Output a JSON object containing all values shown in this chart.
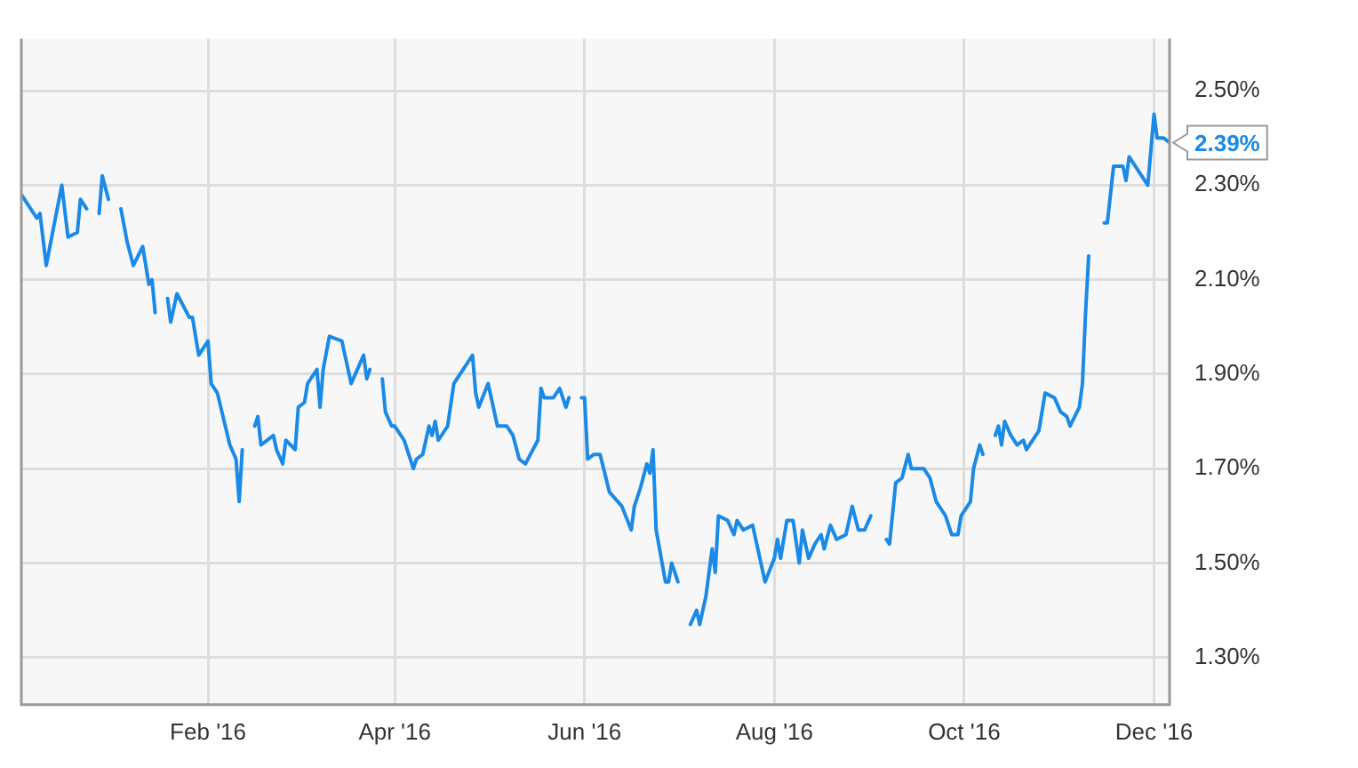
{
  "chart_data": {
    "type": "line",
    "x": [
      "2015-12-03",
      "2015-12-06",
      "2015-12-08",
      "2015-12-09",
      "2015-12-11",
      "2015-12-16",
      "2015-12-18",
      "2015-12-21",
      "2015-12-22",
      "2015-12-24",
      "2015-12-27",
      "2015-12-28",
      "2015-12-29",
      "2015-12-31",
      "2016-01-02",
      "2016-01-04",
      "2016-01-06",
      "2016-01-08",
      "2016-01-11",
      "2016-01-13",
      "2016-01-14",
      "2016-01-15",
      "2016-01-17",
      "2016-01-19",
      "2016-01-20",
      "2016-01-22",
      "2016-01-26",
      "2016-01-27",
      "2016-01-29",
      "2016-02-01",
      "2016-02-02",
      "2016-02-04",
      "2016-02-08",
      "2016-02-10",
      "2016-02-11",
      "2016-02-12",
      "2016-02-14",
      "2016-02-16",
      "2016-02-17",
      "2016-02-18",
      "2016-02-22",
      "2016-02-23",
      "2016-02-25",
      "2016-02-26",
      "2016-02-29",
      "2016-03-01",
      "2016-03-03",
      "2016-03-04",
      "2016-03-07",
      "2016-03-08",
      "2016-03-09",
      "2016-03-11",
      "2016-03-15",
      "2016-03-18",
      "2016-03-22",
      "2016-03-23",
      "2016-03-24",
      "2016-03-26",
      "2016-03-28",
      "2016-03-29",
      "2016-03-31",
      "2016-04-01",
      "2016-04-04",
      "2016-04-05",
      "2016-04-07",
      "2016-04-08",
      "2016-04-10",
      "2016-04-12",
      "2016-04-13",
      "2016-04-14",
      "2016-04-15",
      "2016-04-18",
      "2016-04-20",
      "2016-04-21",
      "2016-04-24",
      "2016-04-26",
      "2016-04-27",
      "2016-04-28",
      "2016-05-01",
      "2016-05-04",
      "2016-05-07",
      "2016-05-09",
      "2016-05-11",
      "2016-05-13",
      "2016-05-17",
      "2016-05-18",
      "2016-05-19",
      "2016-05-22",
      "2016-05-24",
      "2016-05-26",
      "2016-05-27",
      "2016-05-29",
      "2016-05-31",
      "2016-06-01",
      "2016-06-02",
      "2016-06-04",
      "2016-06-06",
      "2016-06-09",
      "2016-06-13",
      "2016-06-16",
      "2016-06-17",
      "2016-06-19",
      "2016-06-21",
      "2016-06-22",
      "2016-06-23",
      "2016-06-24",
      "2016-06-27",
      "2016-06-28",
      "2016-06-29",
      "2016-07-01",
      "2016-07-04",
      "2016-07-05",
      "2016-07-07",
      "2016-07-08",
      "2016-07-10",
      "2016-07-12",
      "2016-07-13",
      "2016-07-14",
      "2016-07-17",
      "2016-07-19",
      "2016-07-20",
      "2016-07-22",
      "2016-07-25",
      "2016-07-27",
      "2016-07-29",
      "2016-08-01",
      "2016-08-02",
      "2016-08-03",
      "2016-08-05",
      "2016-08-07",
      "2016-08-09",
      "2016-08-10",
      "2016-08-12",
      "2016-08-14",
      "2016-08-16",
      "2016-08-17",
      "2016-08-19",
      "2016-08-21",
      "2016-08-24",
      "2016-08-26",
      "2016-08-28",
      "2016-08-30",
      "2016-09-01",
      "2016-09-03",
      "2016-09-06",
      "2016-09-07",
      "2016-09-09",
      "2016-09-11",
      "2016-09-13",
      "2016-09-14",
      "2016-09-18",
      "2016-09-20",
      "2016-09-22",
      "2016-09-25",
      "2016-09-27",
      "2016-09-29",
      "2016-09-30",
      "2016-10-03",
      "2016-10-04",
      "2016-10-06",
      "2016-10-07",
      "2016-10-09",
      "2016-10-11",
      "2016-10-12",
      "2016-10-13",
      "2016-10-14",
      "2016-10-16",
      "2016-10-18",
      "2016-10-20",
      "2016-10-21",
      "2016-10-24",
      "2016-10-25",
      "2016-10-27",
      "2016-10-30",
      "2016-11-01",
      "2016-11-03",
      "2016-11-04",
      "2016-11-07",
      "2016-11-08",
      "2016-11-09",
      "2016-11-10",
      "2016-11-12",
      "2016-11-15",
      "2016-11-16",
      "2016-11-18",
      "2016-11-21",
      "2016-11-22",
      "2016-11-23",
      "2016-11-26",
      "2016-11-29",
      "2016-12-01",
      "2016-12-02",
      "2016-12-04",
      "2016-12-06"
    ],
    "series": [
      {
        "color": "#1a8ae6",
        "values": [
          2.28,
          2.25,
          2.23,
          2.24,
          2.13,
          2.3,
          2.19,
          2.2,
          2.27,
          2.25,
          null,
          2.24,
          2.32,
          2.27,
          null,
          2.25,
          2.18,
          2.13,
          2.17,
          2.09,
          2.1,
          2.03,
          null,
          2.06,
          2.01,
          2.07,
          2.02,
          2.02,
          1.94,
          1.97,
          1.88,
          1.86,
          1.75,
          1.72,
          1.63,
          1.74,
          null,
          1.79,
          1.81,
          1.75,
          1.77,
          1.74,
          1.71,
          1.76,
          1.74,
          1.83,
          1.84,
          1.88,
          1.91,
          1.83,
          1.91,
          1.98,
          1.97,
          1.88,
          1.94,
          1.89,
          1.91,
          null,
          1.89,
          1.82,
          1.79,
          1.79,
          1.76,
          1.74,
          1.7,
          1.72,
          1.73,
          1.79,
          1.77,
          1.8,
          1.76,
          1.79,
          1.88,
          1.89,
          1.92,
          1.94,
          1.86,
          1.83,
          1.88,
          1.79,
          1.79,
          1.77,
          1.72,
          1.71,
          1.76,
          1.87,
          1.85,
          1.85,
          1.87,
          1.83,
          1.85,
          null,
          1.85,
          1.85,
          1.72,
          1.73,
          1.73,
          1.65,
          1.62,
          1.57,
          1.62,
          1.66,
          1.71,
          1.69,
          1.74,
          1.57,
          1.46,
          1.46,
          1.5,
          1.46,
          null,
          1.37,
          1.4,
          1.37,
          1.43,
          1.53,
          1.48,
          1.6,
          1.59,
          1.56,
          1.59,
          1.57,
          1.58,
          1.52,
          1.46,
          1.51,
          1.55,
          1.51,
          1.59,
          1.59,
          1.5,
          1.57,
          1.51,
          1.54,
          1.56,
          1.53,
          1.58,
          1.55,
          1.56,
          1.62,
          1.57,
          1.57,
          1.6,
          null,
          1.55,
          1.54,
          1.67,
          1.68,
          1.73,
          1.7,
          1.7,
          1.68,
          1.63,
          1.6,
          1.56,
          1.56,
          1.6,
          1.63,
          1.7,
          1.75,
          1.73,
          null,
          1.77,
          1.79,
          1.75,
          1.8,
          1.77,
          1.75,
          1.76,
          1.74,
          1.77,
          1.78,
          1.86,
          1.85,
          1.82,
          1.81,
          1.79,
          1.83,
          1.88,
          2.03,
          2.15,
          null,
          2.22,
          2.22,
          2.34,
          2.34,
          2.31,
          2.36,
          2.33,
          2.3,
          2.45,
          2.4,
          2.4,
          2.39
        ]
      }
    ],
    "xlim": [
      "2015-12-03",
      "2016-12-06"
    ],
    "xticks": [
      {
        "value": "2016-02-01",
        "label": "Feb '16"
      },
      {
        "value": "2016-04-01",
        "label": "Apr '16"
      },
      {
        "value": "2016-06-01",
        "label": "Jun '16"
      },
      {
        "value": "2016-08-01",
        "label": "Aug '16"
      },
      {
        "value": "2016-10-01",
        "label": "Oct '16"
      },
      {
        "value": "2016-12-01",
        "label": "Dec '16"
      }
    ],
    "ylim": [
      1.2,
      2.61
    ],
    "yticks": [
      {
        "value": 1.3,
        "label": "1.30%"
      },
      {
        "value": 1.5,
        "label": "1.50%"
      },
      {
        "value": 1.7,
        "label": "1.70%"
      },
      {
        "value": 1.9,
        "label": "1.90%"
      },
      {
        "value": 2.1,
        "label": "2.10%"
      },
      {
        "value": 2.3,
        "label": "2.30%"
      },
      {
        "value": 2.5,
        "label": "2.50%"
      }
    ],
    "annotations": [
      {
        "text": "2.39%",
        "x": "2016-12-06",
        "y": 2.39
      }
    ],
    "grid": true,
    "legend": false,
    "marker": "none",
    "line_style": "solid"
  }
}
